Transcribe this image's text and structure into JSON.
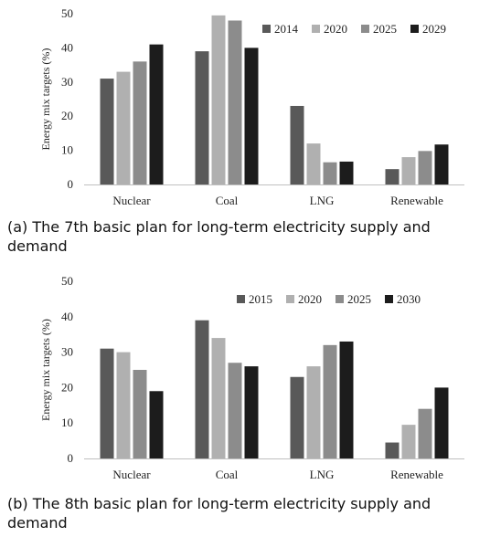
{
  "chart_data": [
    {
      "type": "bar",
      "categories": [
        "Nuclear",
        "Coal",
        "LNG",
        "Renewable"
      ],
      "series": [
        {
          "name": "2014",
          "color": "#595959",
          "values": [
            31,
            39,
            23,
            4.5
          ]
        },
        {
          "name": "2020",
          "color": "#b0b0b0",
          "values": [
            33,
            49.5,
            12,
            8
          ]
        },
        {
          "name": "2025",
          "color": "#8c8c8c",
          "values": [
            36,
            48,
            6.5,
            9.8
          ]
        },
        {
          "name": "2029",
          "color": "#1c1c1c",
          "values": [
            41,
            40,
            6.7,
            11.7
          ]
        }
      ],
      "ylabel": "Energy mix targets (%)",
      "ylim": [
        0,
        50
      ],
      "yticks": [
        0,
        10,
        20,
        30,
        40,
        50
      ],
      "legend": "top-right",
      "grid": false,
      "caption": "(a) The 7th basic plan for long-term electricity supply and demand"
    },
    {
      "type": "bar",
      "categories": [
        "Nuclear",
        "Coal",
        "LNG",
        "Renewable"
      ],
      "series": [
        {
          "name": "2015",
          "color": "#595959",
          "values": [
            31,
            39,
            23,
            4.5
          ]
        },
        {
          "name": "2020",
          "color": "#b0b0b0",
          "values": [
            30,
            34,
            26,
            9.5
          ]
        },
        {
          "name": "2025",
          "color": "#8c8c8c",
          "values": [
            25,
            27,
            32,
            14
          ]
        },
        {
          "name": "2030",
          "color": "#1c1c1c",
          "values": [
            19,
            26,
            33,
            20
          ]
        }
      ],
      "ylabel": "Energy mix targets (%)",
      "ylim": [
        0,
        50
      ],
      "yticks": [
        0,
        10,
        20,
        30,
        40,
        50
      ],
      "legend": "top-right",
      "grid": false,
      "caption": "(b) The 8th basic plan for long-term electricity supply and demand"
    }
  ]
}
